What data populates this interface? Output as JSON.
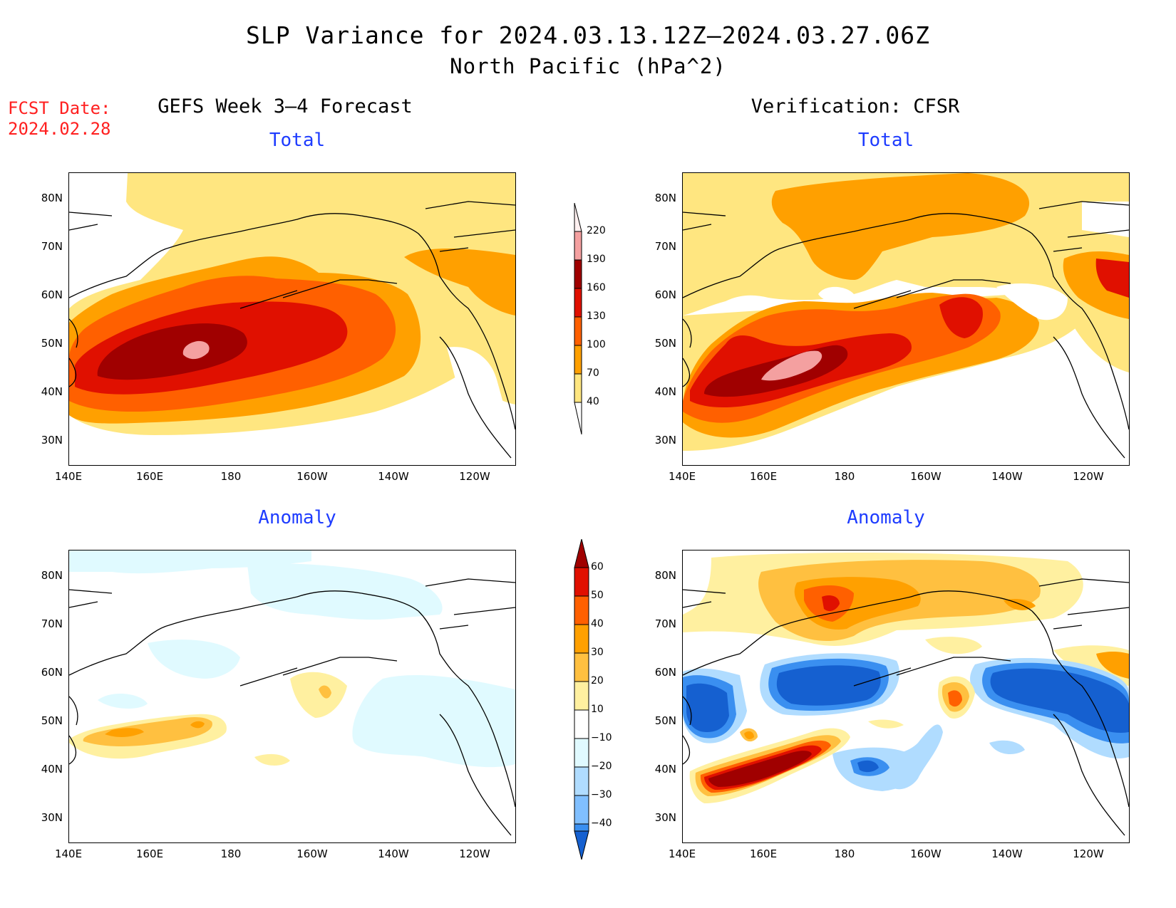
{
  "header": {
    "title": "SLP Variance for 2024.03.13.12Z–2024.03.27.06Z",
    "subtitle": "North Pacific (hPa^2)",
    "fcst_line1": "FCST Date:",
    "fcst_line2": "2024.02.28",
    "left_column": "GEFS Week 3–4 Forecast",
    "right_column": "Verification: CFSR"
  },
  "panels": {
    "top_left_title": "Total",
    "top_right_title": "Total",
    "bottom_left_title": "Anomaly",
    "bottom_right_title": "Anomaly"
  },
  "axes": {
    "lat_labels": [
      "80N",
      "70N",
      "60N",
      "50N",
      "40N",
      "30N"
    ],
    "lon_labels": [
      "140E",
      "160E",
      "180",
      "160W",
      "140W",
      "120W"
    ]
  },
  "colorbars": {
    "total": {
      "labels": [
        "220",
        "190",
        "160",
        "130",
        "100",
        "70",
        "40"
      ],
      "colors": [
        "#ffe0e0",
        "#f4a0a0",
        "#a00000",
        "#e01000",
        "#ff6000",
        "#ffa000",
        "#ffe680"
      ]
    },
    "anomaly": {
      "labels": [
        "60",
        "50",
        "40",
        "30",
        "20",
        "10",
        "−10",
        "−20",
        "−30",
        "−40"
      ],
      "colors": [
        "#a00000",
        "#e01000",
        "#ff6000",
        "#ffa000",
        "#ffc040",
        "#fff0a0",
        "#ffffff",
        "#e0faff",
        "#b0dcff",
        "#80bfff",
        "#3a8ff0",
        "#1560d0"
      ]
    }
  }
}
